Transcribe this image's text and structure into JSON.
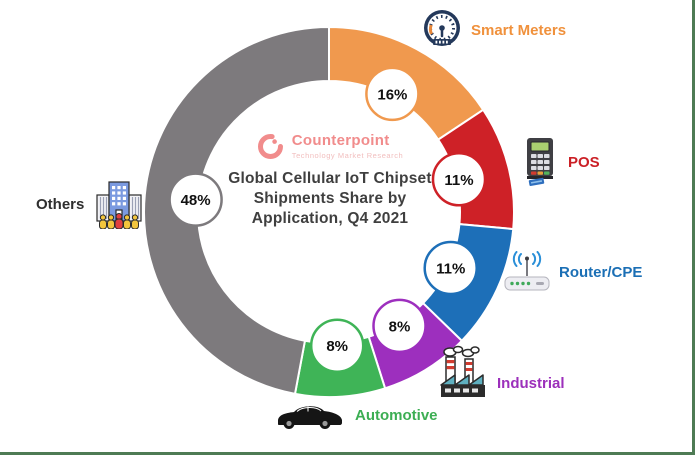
{
  "frame": {
    "border_color": "#4e7b54"
  },
  "center": {
    "logo": {
      "brand": "Counterpoint",
      "tagline": "Technology Market Research",
      "brand_color": "#f18c8c",
      "tagline_color": "#f2bebe"
    },
    "title_lines": [
      "Global Cellular IoT Chipset",
      "Shipments Share by",
      "Application, Q4 2021"
    ],
    "title_color": "#3f3f3f"
  },
  "chart_data": {
    "type": "pie",
    "donut": true,
    "title": "Global Cellular IoT Chipset Shipments Share by Application, Q4 2021",
    "start_angle_deg": 0,
    "direction": "clockwise",
    "categories": [
      "Smart Meters",
      "POS",
      "Router/CPE",
      "Industrial",
      "Automotive",
      "Others"
    ],
    "values": [
      16,
      11,
      11,
      8,
      8,
      48
    ],
    "labels": [
      "16%",
      "11%",
      "11%",
      "8%",
      "8%",
      "48%"
    ],
    "colors": [
      "#f0994e",
      "#ce2127",
      "#1d6fb8",
      "#9d2fbe",
      "#3fb457",
      "#7d7a7d"
    ],
    "legend_position": "around",
    "grid": false
  },
  "legend": [
    {
      "label": "Smart Meters",
      "color": "#f0913c",
      "icon": "gauge-icon"
    },
    {
      "label": "POS",
      "color": "#cb2026",
      "icon": "pos-terminal-icon"
    },
    {
      "label": "Router/CPE",
      "color": "#1b6fb5",
      "icon": "router-icon"
    },
    {
      "label": "Industrial",
      "color": "#9c30bb",
      "icon": "factory-icon"
    },
    {
      "label": "Automotive",
      "color": "#3cae53",
      "icon": "car-icon"
    },
    {
      "label": "Others",
      "color": "#2e2e2e",
      "icon": "building-crowd-icon"
    }
  ]
}
